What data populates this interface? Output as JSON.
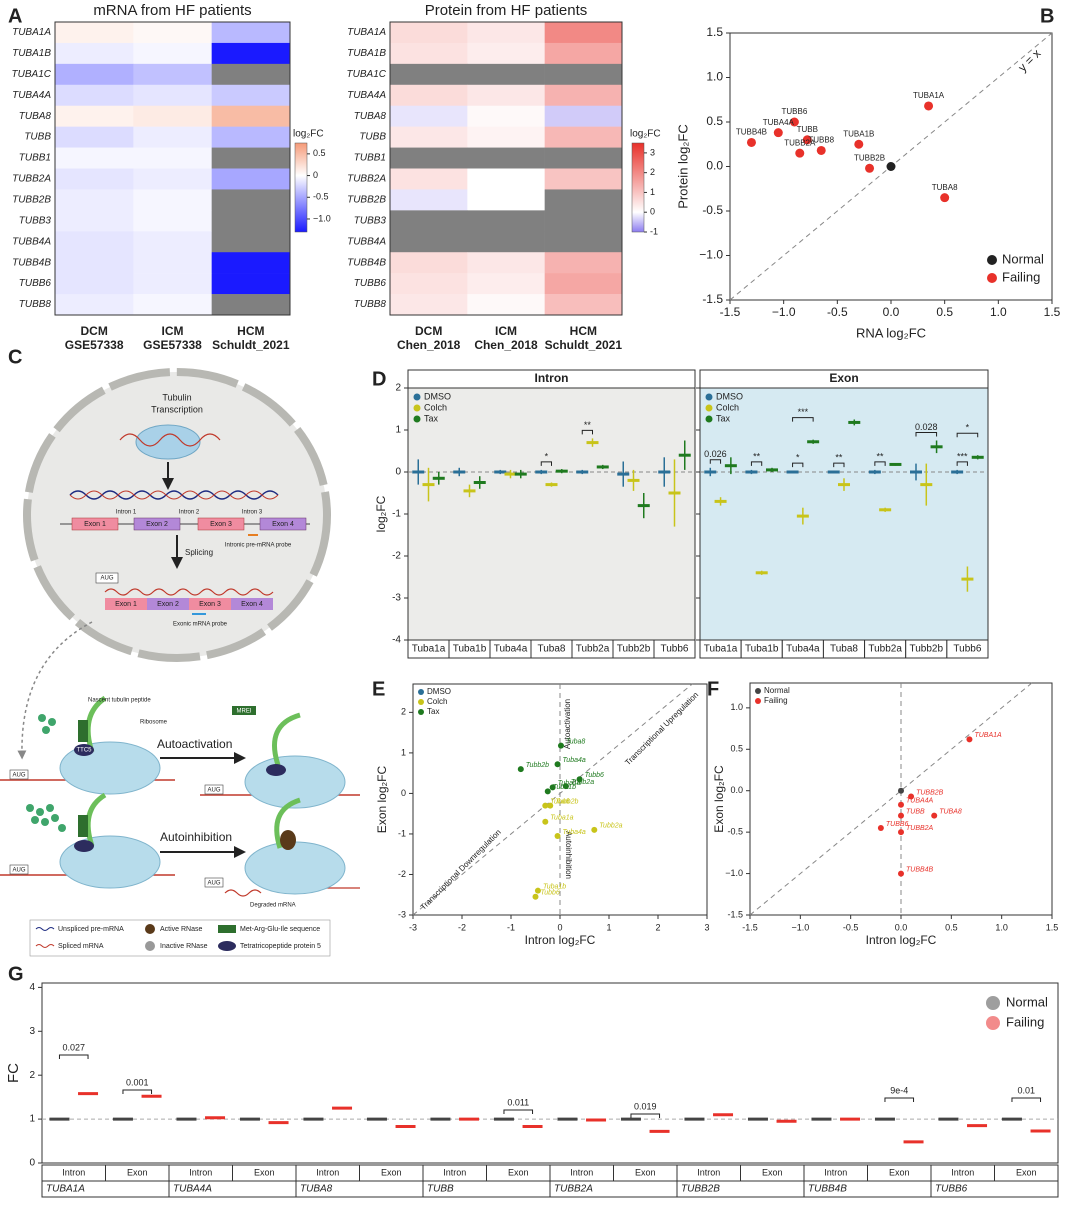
{
  "chart_data": [
    {
      "panel": "A",
      "type": "heatmap",
      "title": "mRNA from HF patients",
      "rows": [
        "TUBA1A",
        "TUBA1B",
        "TUBA1C",
        "TUBA4A",
        "TUBA8",
        "TUBB",
        "TUBB1",
        "TUBB2A",
        "TUBB2B",
        "TUBB3",
        "TUBB4A",
        "TUBB4B",
        "TUBB6",
        "TUBB8"
      ],
      "columns": [
        "DCM",
        "ICM",
        "HCM"
      ],
      "column_sources": [
        "GSE57338",
        "GSE57338",
        "Schuldt_2021"
      ],
      "values": [
        [
          0.1,
          0.05,
          -0.4
        ],
        [
          -0.1,
          -0.05,
          -1.3
        ],
        [
          -0.45,
          -0.35,
          null
        ],
        [
          -0.2,
          -0.15,
          -0.3
        ],
        [
          0.1,
          0.15,
          0.5
        ],
        [
          -0.2,
          -0.1,
          -0.4
        ],
        [
          -0.05,
          -0.05,
          null
        ],
        [
          -0.15,
          -0.1,
          -0.5
        ],
        [
          -0.1,
          -0.05,
          null
        ],
        [
          -0.1,
          -0.05,
          null
        ],
        [
          -0.15,
          -0.1,
          null
        ],
        [
          -0.15,
          -0.1,
          -1.3
        ],
        [
          -0.15,
          -0.1,
          -1.3
        ],
        [
          -0.1,
          -0.05,
          null
        ]
      ],
      "colorbar_title": "log₂FC",
      "clim": [
        -1.3,
        0.75
      ],
      "cticks": [
        0.5,
        0,
        -0.5,
        {
          "value": -1,
          "label": "−1.0"
        }
      ],
      "colors": {
        "low": "#1a1aff",
        "mid": "#ffffff",
        "high": "#f59a78"
      },
      "missing_color": "#808080"
    },
    {
      "type": "heatmap",
      "title": "Protein from HF patients",
      "rows": [
        "TUBA1A",
        "TUBA1B",
        "TUBA1C",
        "TUBA4A",
        "TUBA8",
        "TUBB",
        "TUBB1",
        "TUBB2A",
        "TUBB2B",
        "TUBB3",
        "TUBB4A",
        "TUBB4B",
        "TUBB6",
        "TUBB8"
      ],
      "columns": [
        "DCM",
        "ICM",
        "HCM"
      ],
      "column_sources": [
        "Chen_2018",
        "Chen_2018",
        "Schuldt_2021"
      ],
      "values": [
        [
          0.6,
          0.4,
          2.0
        ],
        [
          0.5,
          0.3,
          1.5
        ],
        [
          null,
          null,
          null
        ],
        [
          0.6,
          0.4,
          1.3
        ],
        [
          -0.2,
          0.1,
          -0.4
        ],
        [
          0.4,
          0.2,
          1.2
        ],
        [
          null,
          null,
          null
        ],
        [
          0.5,
          0.0,
          1.0
        ],
        [
          -0.2,
          0.0,
          null
        ],
        [
          null,
          null,
          null
        ],
        [
          null,
          null,
          null
        ],
        [
          0.6,
          0.4,
          1.3
        ],
        [
          0.5,
          0.3,
          1.5
        ],
        [
          0.4,
          0.1,
          1.1
        ]
      ],
      "colorbar_title": "log₂FC",
      "clim": [
        -1,
        3.5
      ],
      "cticks": [
        3,
        2,
        1,
        0,
        -1
      ],
      "colors": {
        "low": "#8c7cf0",
        "mid": "#ffffff",
        "high": "#e8312a"
      },
      "missing_color": "#808080"
    },
    {
      "panel": "B",
      "type": "scatter",
      "xlabel": "RNA log₂FC",
      "ylabel": "Protein log₂FC",
      "xlim": [
        -1.5,
        1.5
      ],
      "ylim": [
        -1.5,
        1.5
      ],
      "xticks": [
        -1.5,
        {
          "value": -1,
          "label": "−1.0"
        },
        -0.5,
        {
          "value": 0,
          "label": "0.0"
        },
        0.5,
        {
          "value": 1,
          "label": "1.0"
        },
        1.5
      ],
      "yticks": [
        -1.5,
        {
          "value": -1,
          "label": "−1.0"
        },
        -0.5,
        {
          "value": 0,
          "label": "0.0"
        },
        0.5,
        {
          "value": 1,
          "label": "1.0"
        },
        1.5
      ],
      "diagonal": true,
      "annotation": "y = x",
      "legend_position": "lower right",
      "series": [
        {
          "name": "Normal",
          "color": "#222222",
          "x": [
            0
          ],
          "values": [
            0
          ]
        },
        {
          "name": "Failing",
          "color": "#e8312a",
          "x": [
            0.35,
            -0.9,
            -1.05,
            -0.78,
            -0.3,
            -1.3,
            -0.85,
            -0.65,
            -0.2,
            0.5
          ],
          "values": [
            0.68,
            0.5,
            0.38,
            0.3,
            0.25,
            0.27,
            0.15,
            0.18,
            -0.02,
            -0.35
          ],
          "labels": [
            "TUBA1A",
            "TUBB6",
            "TUBA4A",
            "TUBB",
            "TUBA1B",
            "TUBB4B",
            "TUBB2A",
            "TUBB8",
            "TUBB2B",
            "TUBA8"
          ]
        }
      ]
    },
    {
      "panel": "D",
      "type": "dot_error",
      "ylabel": "log₂FC",
      "ylim": [
        -4,
        2
      ],
      "yticks": [
        -4,
        -3,
        -2,
        -1,
        0,
        1,
        2
      ],
      "reference_line": 0,
      "categories": [
        "Tuba1a",
        "Tuba1b",
        "Tuba4a",
        "Tuba8",
        "Tubb2a",
        "Tubb2b",
        "Tubb6"
      ],
      "facets": [
        {
          "title": "Intron",
          "background": "#ececea",
          "series": [
            {
              "name": "DMSO",
              "color": "#2a6f97",
              "values": [
                0,
                0,
                0,
                0,
                0,
                -0.05,
                0
              ],
              "errors": [
                0.3,
                0.1,
                0.05,
                0.05,
                0.05,
                0.3,
                0.35
              ]
            },
            {
              "name": "Colch",
              "color": "#c8c41a",
              "values": [
                -0.3,
                -0.45,
                -0.05,
                -0.3,
                0.7,
                -0.2,
                -0.5
              ],
              "errors": [
                0.4,
                0.15,
                0.1,
                0.05,
                0.1,
                0.25,
                0.8
              ]
            },
            {
              "name": "Tax",
              "color": "#1f7a1f",
              "values": [
                -0.15,
                -0.25,
                -0.05,
                0.02,
                0.12,
                -0.8,
                0.4
              ],
              "errors": [
                0.15,
                0.15,
                0.1,
                0.05,
                0.05,
                0.3,
                0.35
              ]
            }
          ],
          "annotations": [
            {
              "category": "Tuba8",
              "pair": [
                "DMSO",
                "Colch"
              ],
              "label": "*"
            },
            {
              "category": "Tubb2a",
              "pair": [
                "DMSO",
                "Colch"
              ],
              "label": "**"
            }
          ]
        },
        {
          "title": "Exon",
          "background": "#d6eaf2",
          "series": [
            {
              "name": "DMSO",
              "color": "#2a6f97",
              "values": [
                0,
                0,
                0,
                0,
                0,
                0,
                0
              ],
              "errors": [
                0.1,
                0.05,
                0.02,
                0.02,
                0.05,
                0.2,
                0.05
              ]
            },
            {
              "name": "Colch",
              "color": "#c8c41a",
              "values": [
                -0.7,
                -2.4,
                -1.05,
                -0.3,
                -0.9,
                -0.3,
                -2.55
              ],
              "errors": [
                0.1,
                0.05,
                0.2,
                0.15,
                0.05,
                0.5,
                0.3
              ]
            },
            {
              "name": "Tax",
              "color": "#1f7a1f",
              "values": [
                0.15,
                0.05,
                0.72,
                1.18,
                0.18,
                0.6,
                0.35
              ],
              "errors": [
                0.2,
                0.05,
                0.05,
                0.07,
                0.03,
                0.15,
                0.05
              ]
            }
          ],
          "annotations": [
            {
              "category": "Tuba1a",
              "pair": [
                "DMSO",
                "Colch"
              ],
              "label": "0.026"
            },
            {
              "category": "Tuba1b",
              "pair": [
                "DMSO",
                "Colch"
              ],
              "label": "**"
            },
            {
              "category": "Tuba4a",
              "pair": [
                "DMSO",
                "Colch"
              ],
              "label": "*"
            },
            {
              "category": "Tuba4a",
              "pair": [
                "DMSO",
                "Tax"
              ],
              "label": "***"
            },
            {
              "category": "Tuba8",
              "pair": [
                "DMSO",
                "Colch"
              ],
              "label": "**"
            },
            {
              "category": "Tubb2a",
              "pair": [
                "DMSO",
                "Colch"
              ],
              "label": "**"
            },
            {
              "category": "Tubb2b",
              "pair": [
                "DMSO",
                "Tax"
              ],
              "label": "0.028"
            },
            {
              "category": "Tubb6",
              "pair": [
                "DMSO",
                "Colch"
              ],
              "label": "***"
            },
            {
              "category": "Tubb6",
              "pair": [
                "DMSO",
                "Tax"
              ],
              "label": "*"
            }
          ]
        }
      ]
    },
    {
      "panel": "E",
      "type": "scatter",
      "xlabel": "Intron log₂FC",
      "ylabel": "Exon log₂FC",
      "xlim": [
        -3,
        3
      ],
      "ylim": [
        -3,
        2.7
      ],
      "xticks": [
        -3,
        -2,
        -1,
        0,
        1,
        2,
        3
      ],
      "yticks": [
        -3,
        -2,
        -1,
        0,
        1,
        2
      ],
      "diagonal": true,
      "reference_x": 0,
      "legend_position": "upper left",
      "annotations": [
        "Autoactivation",
        "Transcriptional Upregulation",
        "Transcriptional Downregulation",
        "Autoinhibition"
      ],
      "series": [
        {
          "name": "DMSO",
          "color": "#2a6f97",
          "x": [],
          "values": []
        },
        {
          "name": "Colch",
          "color": "#c8c41a",
          "x": [
            -0.3,
            -0.45,
            -0.05,
            -0.3,
            0.7,
            -0.2,
            -0.5
          ],
          "values": [
            -0.7,
            -2.4,
            -1.05,
            -0.3,
            -0.9,
            -0.3,
            -2.55
          ],
          "labels": [
            "Tuba1a",
            "Tuba1b",
            "Tuba4a",
            "Tuba8",
            "Tubb2a",
            "Tubb2b",
            "Tubb6"
          ]
        },
        {
          "name": "Tax",
          "color": "#1f7a1f",
          "x": [
            -0.15,
            -0.25,
            -0.05,
            0.02,
            0.12,
            -0.8,
            0.4
          ],
          "values": [
            0.15,
            0.05,
            0.72,
            1.18,
            0.18,
            0.6,
            0.35
          ],
          "labels": [
            "Tuba1a",
            "Tuba1b",
            "Tuba4a",
            "Tuba8",
            "Tubb2a",
            "Tubb2b",
            "Tubb6"
          ]
        }
      ]
    },
    {
      "panel": "F",
      "type": "scatter",
      "xlabel": "Intron log₂FC",
      "ylabel": "Exon log₂FC",
      "xlim": [
        -1.5,
        1.5
      ],
      "ylim": [
        -1.5,
        1.3
      ],
      "xticks": [
        -1.5,
        {
          "value": -1,
          "label": "−1.0"
        },
        -0.5,
        {
          "value": 0,
          "label": "0.0"
        },
        0.5,
        {
          "value": 1,
          "label": "1.0"
        },
        1.5
      ],
      "yticks": [
        -1.5,
        {
          "value": -1,
          "label": "−1.0"
        },
        -0.5,
        {
          "value": 0,
          "label": "0.0"
        },
        0.5,
        {
          "value": 1,
          "label": "1.0"
        }
      ],
      "diagonal": true,
      "reference_x": 0,
      "legend_position": "upper left",
      "series": [
        {
          "name": "Normal",
          "color": "#444444",
          "x": [
            0
          ],
          "values": [
            0
          ]
        },
        {
          "name": "Failing",
          "color": "#e8312a",
          "x": [
            0.68,
            0.1,
            0,
            0,
            0.33,
            -0.2,
            0,
            0
          ],
          "values": [
            0.62,
            -0.07,
            -0.17,
            -0.3,
            -0.3,
            -0.45,
            -0.5,
            -1.0
          ],
          "labels": [
            "TUBA1A",
            "TUBB2B",
            "TUBA4A",
            "TUBB",
            "TUBA8",
            "TUBB6",
            "TUBB2A",
            "TUBB4B"
          ]
        }
      ]
    },
    {
      "panel": "G",
      "type": "dot_mean",
      "ylabel": "FC",
      "ylim": [
        0,
        4.1
      ],
      "yticks": [
        0,
        1,
        2,
        3,
        4
      ],
      "reference_line": 1,
      "legend_position": "upper right",
      "categories": [
        "TUBA1A",
        "TUBA4A",
        "TUBA8",
        "TUBB",
        "TUBB2A",
        "TUBB2B",
        "TUBB4B",
        "TUBB6"
      ],
      "subcategories": [
        "Intron",
        "Exon"
      ],
      "series": [
        {
          "name": "Normal",
          "color": "#9e9e9e",
          "values": [
            [
              1,
              1
            ],
            [
              1,
              1
            ],
            [
              1,
              1
            ],
            [
              1,
              1
            ],
            [
              1,
              1
            ],
            [
              1,
              1
            ],
            [
              1,
              1
            ],
            [
              1,
              1
            ]
          ]
        },
        {
          "name": "Failing",
          "color": "#f28b8b",
          "values": [
            [
              1.58,
              1.52
            ],
            [
              1.03,
              0.92
            ],
            [
              1.25,
              0.83
            ],
            [
              1.0,
              0.83
            ],
            [
              0.98,
              0.72
            ],
            [
              1.1,
              0.95
            ],
            [
              1.0,
              0.48
            ],
            [
              0.85,
              0.73
            ]
          ]
        }
      ],
      "annotations": [
        {
          "category": "TUBA1A",
          "subcategory": "Intron",
          "label": "0.027"
        },
        {
          "category": "TUBA1A",
          "subcategory": "Exon",
          "label": "0.001"
        },
        {
          "category": "TUBB",
          "subcategory": "Exon",
          "label": "0.011"
        },
        {
          "category": "TUBB2A",
          "subcategory": "Exon",
          "label": "0.019"
        },
        {
          "category": "TUBB4B",
          "subcategory": "Exon",
          "label": "9e-4"
        },
        {
          "category": "TUBB6",
          "subcategory": "Exon",
          "label": "0.01"
        }
      ]
    }
  ],
  "diagram": {
    "panel": "C",
    "nucleus_title": [
      "Tubulin",
      "Transcription"
    ],
    "introns": [
      "Intron 1",
      "Intron 2",
      "Intron 3"
    ],
    "exons": [
      "Exon 1",
      "Exon 2",
      "Exon 3",
      "Exon 4"
    ],
    "intronic_probe": "Intronic pre-mRNA probe",
    "splicing": "Splicing",
    "start_codon": "AUG",
    "exonic_probe": "Exonic mRNA probe",
    "nascent_peptide": "Nascent tubulin peptide",
    "ribosome": "Ribosome",
    "mrei": "MREI",
    "ttc5": "TTC5",
    "autoactivation": "Autoactivation",
    "autoinhibition": "Autoinhibition",
    "degraded": "Degraded mRNA",
    "legend": [
      "Unspliced pre-mRNA",
      "Spliced mRNA",
      "Active RNase",
      "Inactive RNase",
      "Met-Arg-Glu-Ile sequence",
      "Tetratricopeptide protein 5"
    ]
  }
}
